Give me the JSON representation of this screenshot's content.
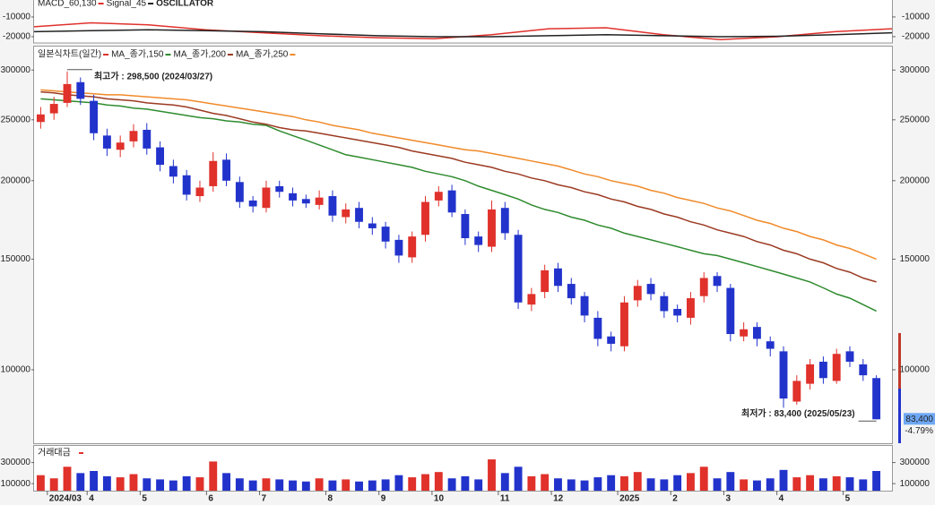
{
  "chart_data": [
    {
      "type": "line",
      "series": [
        {
          "name": "MACD_60,130",
          "color": "#e0312b",
          "values": [
            -15000,
            -13000,
            -14000,
            -16500,
            -18000,
            -19500,
            -20500,
            -21000,
            -19000,
            -16000,
            -15500,
            -19000,
            -21500,
            -20000,
            -17500,
            -16000
          ]
        },
        {
          "name": "Signal_45",
          "color": "#222222",
          "values": [
            -17500,
            -17000,
            -16500,
            -17000,
            -17500,
            -18500,
            -19500,
            -20000,
            -20000,
            -19500,
            -19000,
            -19500,
            -20000,
            -19800,
            -19000,
            -18000
          ]
        }
      ],
      "label": "OSCILLATOR",
      "ylim": [
        -23200,
        -1400
      ],
      "yticks": [
        -10000,
        -20000
      ]
    },
    {
      "type": "candlestick",
      "name": "일본식차트(일간)",
      "up_color": "#e0312b",
      "down_color": "#2233cc",
      "log_scale": true,
      "categories": [
        null,
        "2024/03",
        null,
        null,
        "4",
        null,
        null,
        null,
        "5",
        null,
        null,
        null,
        null,
        "6",
        null,
        null,
        null,
        "7",
        null,
        null,
        null,
        null,
        "8",
        null,
        null,
        null,
        "9",
        null,
        null,
        null,
        "10",
        null,
        null,
        null,
        null,
        "11",
        null,
        null,
        null,
        "12",
        null,
        null,
        null,
        null,
        "2025",
        null,
        null,
        null,
        "2",
        null,
        null,
        null,
        "3",
        null,
        null,
        null,
        "4",
        null,
        null,
        null,
        null,
        "5",
        null,
        null
      ],
      "open": [
        248000,
        256000,
        266000,
        287000,
        268000,
        236000,
        224000,
        231000,
        241000,
        226000,
        211000,
        204000,
        189000,
        196000,
        216000,
        199000,
        186000,
        181000,
        196000,
        191000,
        187000,
        183000,
        189000,
        175000,
        181000,
        171000,
        169000,
        161000,
        151000,
        164000,
        186000,
        193000,
        177000,
        163000,
        157000,
        181000,
        164000,
        127000,
        133000,
        145000,
        137000,
        131000,
        121000,
        113000,
        109000,
        129000,
        137000,
        131000,
        125000,
        121000,
        131000,
        141000,
        135000,
        113000,
        117000,
        111000,
        107000,
        89000,
        95000,
        103000,
        96000,
        107000,
        102000,
        97000
      ],
      "high": [
        262000,
        272000,
        298500,
        292000,
        274000,
        242000,
        236000,
        246000,
        247000,
        231000,
        216000,
        208000,
        200000,
        222000,
        221000,
        203000,
        189000,
        200000,
        200000,
        195000,
        190000,
        193000,
        193000,
        184000,
        185000,
        175000,
        172000,
        164000,
        166000,
        189000,
        196000,
        197000,
        180000,
        166000,
        186000,
        185000,
        167000,
        135000,
        147000,
        148000,
        140000,
        133000,
        124000,
        115000,
        131000,
        139000,
        140000,
        133000,
        127000,
        133000,
        143000,
        143000,
        137000,
        119000,
        119000,
        113000,
        109000,
        98000,
        104000,
        105000,
        108000,
        109000,
        104000,
        98000
      ],
      "low": [
        242000,
        250000,
        262000,
        264000,
        232000,
        219000,
        218000,
        226000,
        220000,
        207000,
        198000,
        186000,
        185000,
        192000,
        196000,
        181000,
        178000,
        178000,
        188000,
        182000,
        181000,
        180000,
        172000,
        171000,
        168000,
        164000,
        156000,
        148000,
        148000,
        160000,
        182000,
        175000,
        158000,
        154000,
        154000,
        161000,
        125000,
        124000,
        130000,
        133000,
        127000,
        119000,
        109000,
        107000,
        107000,
        126000,
        129000,
        121000,
        119000,
        118000,
        128000,
        133000,
        111000,
        111000,
        109000,
        105000,
        87000,
        88000,
        93000,
        95000,
        95000,
        101000,
        96000,
        83400
      ],
      "close": [
        255000,
        265000,
        285000,
        270000,
        238000,
        225000,
        230000,
        240000,
        225000,
        212000,
        203000,
        190000,
        195000,
        215000,
        200000,
        185000,
        182000,
        195000,
        192000,
        186000,
        184000,
        188000,
        176000,
        180000,
        172000,
        168000,
        160000,
        152000,
        163000,
        185000,
        192000,
        178000,
        162000,
        158000,
        180000,
        165000,
        128000,
        132000,
        144000,
        136000,
        130000,
        122000,
        112000,
        110000,
        128000,
        136000,
        132000,
        124000,
        122000,
        130000,
        140000,
        136000,
        114000,
        116000,
        112000,
        108000,
        90000,
        96000,
        102000,
        97000,
        106000,
        103000,
        98000,
        83400
      ],
      "series": [
        {
          "name": "MA_종가,150",
          "color": "#2e8b2e",
          "values": [
            270000,
            269000,
            268000,
            267000,
            266000,
            264000,
            263000,
            261000,
            260000,
            258000,
            256000,
            254000,
            252000,
            251000,
            249000,
            248000,
            246000,
            245000,
            240000,
            236000,
            232000,
            228000,
            224000,
            220000,
            218000,
            216000,
            214000,
            212000,
            210000,
            207000,
            205000,
            203000,
            200000,
            196000,
            193000,
            190000,
            187000,
            183000,
            180000,
            178000,
            175000,
            173000,
            170000,
            168000,
            165000,
            163000,
            161000,
            159000,
            157000,
            155000,
            153000,
            152000,
            150000,
            148000,
            146000,
            144000,
            142000,
            140000,
            138000,
            135000,
            132000,
            130000,
            127000,
            124000
          ]
        },
        {
          "name": "MA_종가,200",
          "color": "#9b3a22",
          "values": [
            277000,
            276000,
            274000,
            273000,
            272000,
            270000,
            269000,
            268000,
            266000,
            265000,
            264000,
            262000,
            259000,
            256000,
            254000,
            251000,
            248000,
            246000,
            243000,
            241000,
            240000,
            238000,
            236000,
            234000,
            232000,
            230000,
            228000,
            226000,
            223000,
            221000,
            219000,
            217000,
            214000,
            212000,
            210000,
            207000,
            205000,
            202000,
            200000,
            197000,
            195000,
            192000,
            190000,
            187000,
            185000,
            182000,
            180000,
            177000,
            175000,
            172000,
            170000,
            167000,
            165000,
            163000,
            160000,
            158000,
            155000,
            153000,
            150000,
            148000,
            145000,
            143000,
            140000,
            138000
          ]
        },
        {
          "name": "MA_종가,250",
          "color": "#f08a2a",
          "values": [
            279000,
            278000,
            277000,
            276000,
            275000,
            274000,
            274000,
            273000,
            272000,
            271000,
            270000,
            269000,
            267000,
            265000,
            263000,
            261000,
            259000,
            257000,
            255000,
            253000,
            250000,
            248000,
            245000,
            243000,
            241000,
            238000,
            236000,
            234000,
            232000,
            230000,
            228000,
            226000,
            224000,
            223000,
            221000,
            219000,
            217000,
            215000,
            213000,
            211000,
            208000,
            205000,
            203000,
            200000,
            198000,
            196000,
            193000,
            191000,
            188000,
            186000,
            184000,
            181000,
            179000,
            176000,
            173000,
            171000,
            168000,
            166000,
            163000,
            161000,
            158000,
            156000,
            153000,
            150000
          ]
        }
      ],
      "annotations": [
        "최고가 : 298,500 (2024/03/27)",
        "최저가 : 83,400 (2025/05/23)"
      ],
      "price_tag": "83,400",
      "change_tag": "-4.79%",
      "ylim": [
        76400,
        327000
      ],
      "yticks": [
        100000,
        150000,
        200000,
        250000,
        300000
      ]
    },
    {
      "type": "bar",
      "title": "거래대금",
      "values": [
        180000,
        150000,
        260000,
        200000,
        220000,
        170000,
        160000,
        190000,
        150000,
        140000,
        130000,
        170000,
        160000,
        310000,
        200000,
        150000,
        130000,
        150000,
        140000,
        130000,
        120000,
        150000,
        130000,
        140000,
        120000,
        130000,
        140000,
        180000,
        160000,
        190000,
        210000,
        150000,
        170000,
        140000,
        330000,
        200000,
        260000,
        170000,
        190000,
        150000,
        140000,
        130000,
        160000,
        180000,
        170000,
        210000,
        150000,
        140000,
        180000,
        200000,
        260000,
        150000,
        210000,
        140000,
        130000,
        150000,
        230000,
        160000,
        180000,
        150000,
        170000,
        160000,
        140000,
        220000
      ],
      "ylim": [
        33000,
        458000
      ],
      "yticks": [
        100000,
        300000
      ]
    }
  ]
}
